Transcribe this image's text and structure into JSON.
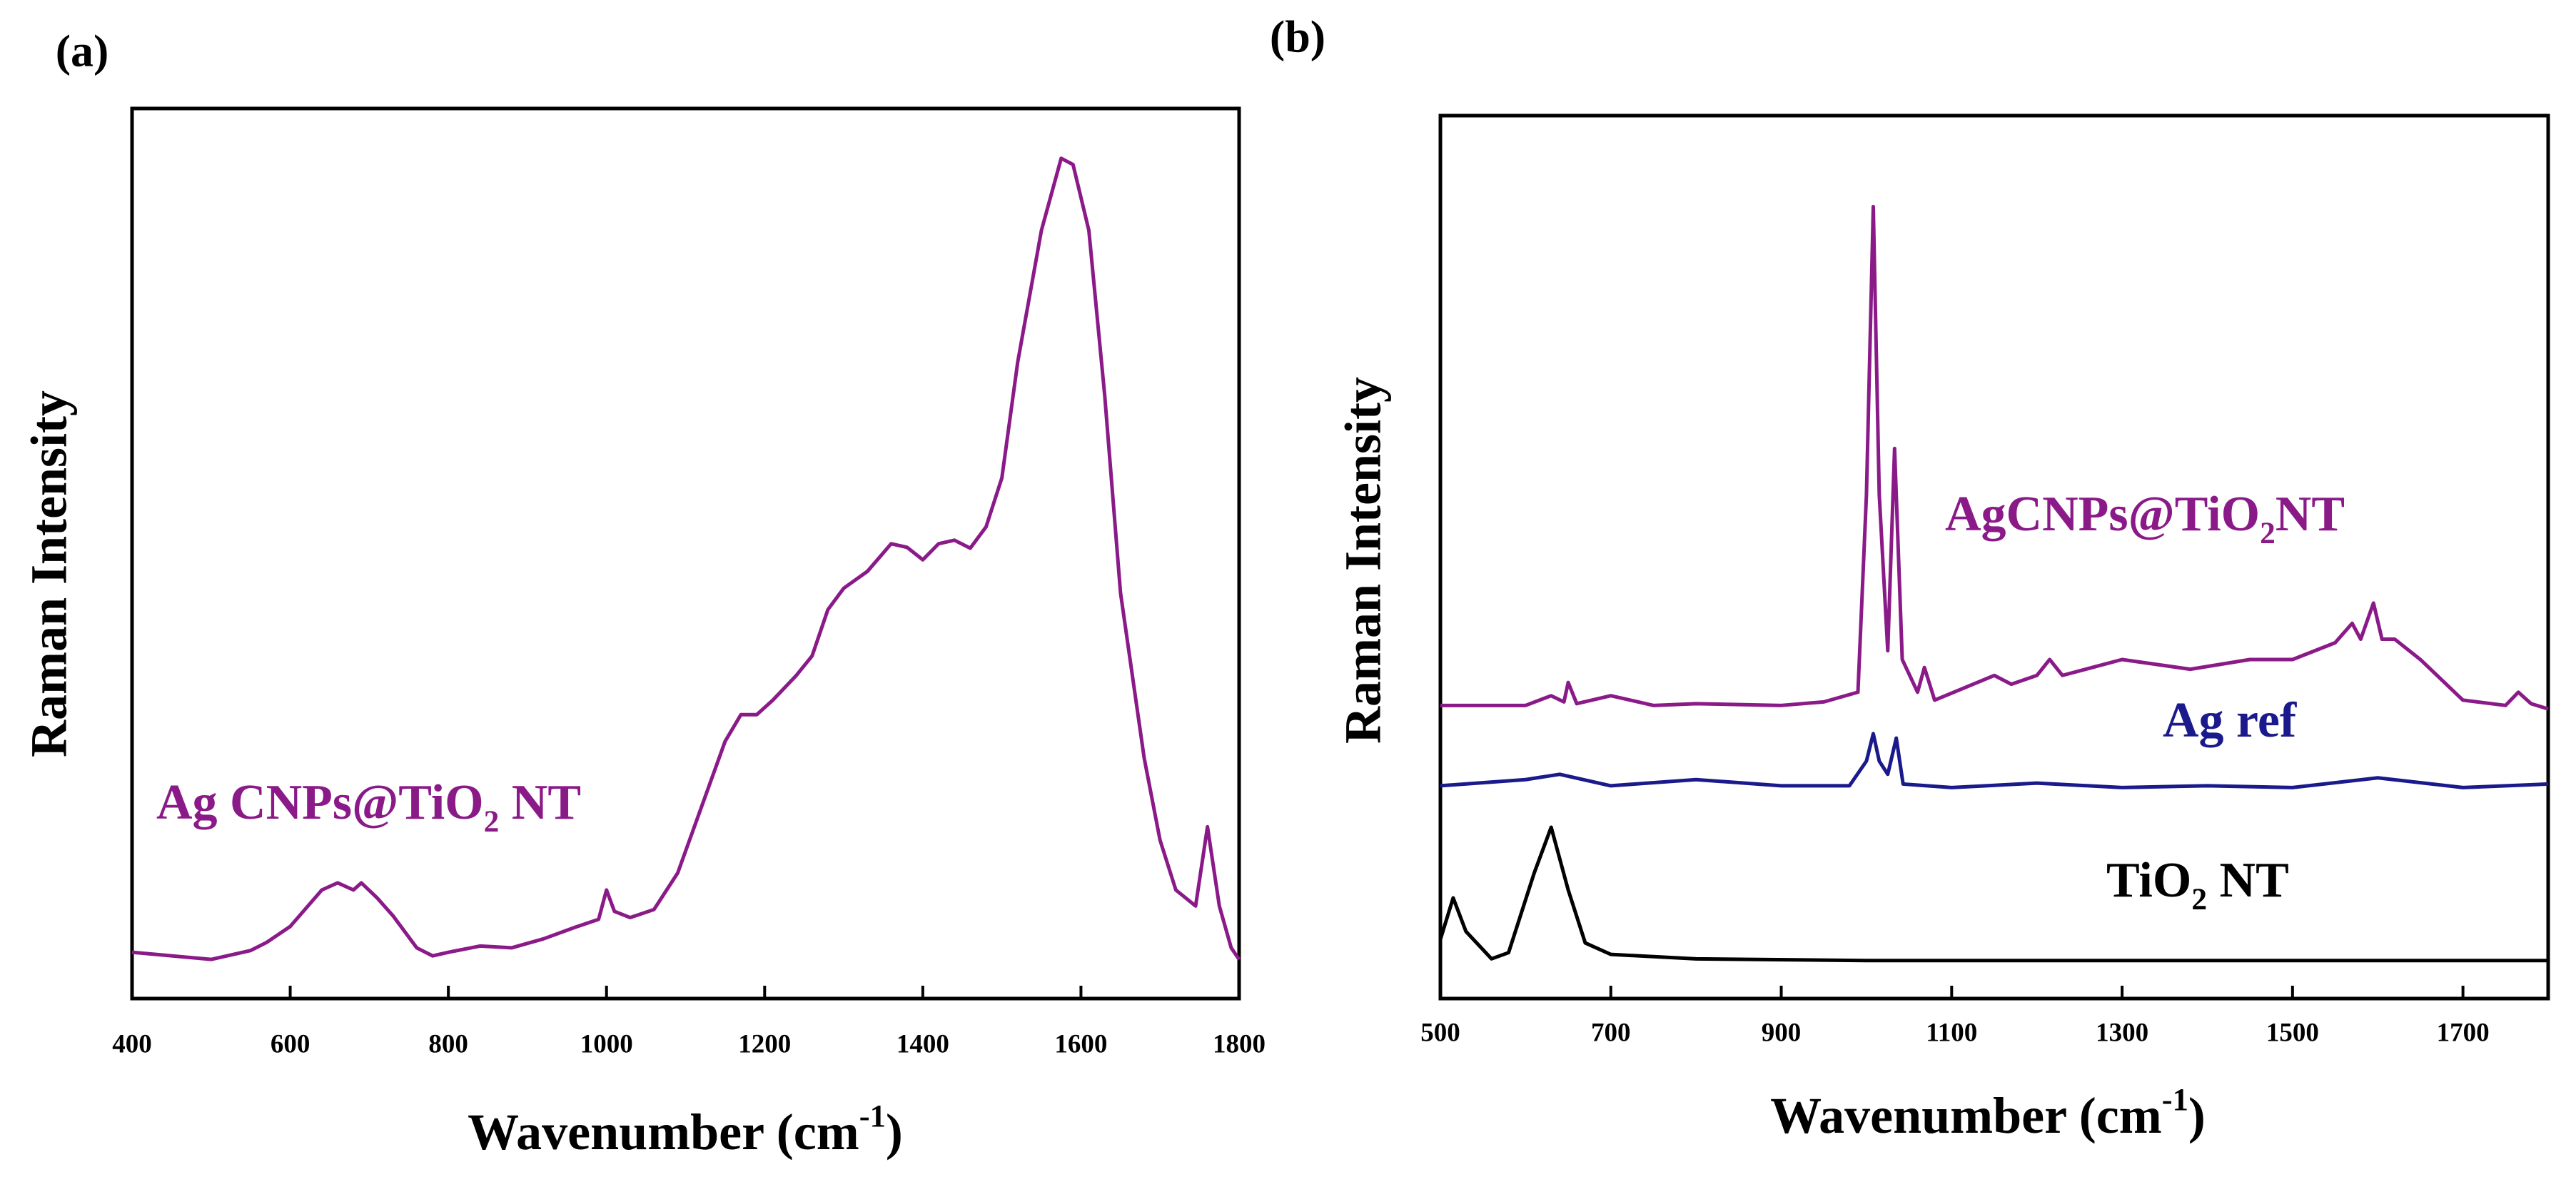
{
  "chart_data": [
    {
      "type": "line",
      "panel": "(a)",
      "y_label": "Raman Intensity",
      "x_label": [
        {
          "t": "Wavenumber (cm"
        },
        {
          "t": "-1",
          "sup": true
        },
        {
          "t": ")"
        }
      ],
      "xlim": [
        400,
        1800
      ],
      "xticks": [
        400,
        600,
        800,
        1000,
        1200,
        1400,
        1600,
        1800
      ],
      "ylim": [
        0,
        100
      ],
      "annotations": [
        {
          "parts": [
            {
              "t": "Ag CNPs@TiO"
            },
            {
              "t": "2",
              "sub": true
            },
            {
              "t": " NT"
            }
          ],
          "color": "#8b1a89"
        }
      ],
      "series": [
        {
          "color": "#8b1a89",
          "x": [
            400,
            450,
            500,
            550,
            570,
            600,
            640,
            660,
            680,
            690,
            710,
            730,
            760,
            780,
            800,
            840,
            880,
            920,
            960,
            990,
            1000,
            1010,
            1030,
            1060,
            1090,
            1120,
            1150,
            1170,
            1190,
            1210,
            1240,
            1260,
            1280,
            1300,
            1330,
            1360,
            1380,
            1400,
            1420,
            1440,
            1460,
            1480,
            1500,
            1520,
            1550,
            1575,
            1590,
            1610,
            1630,
            1650,
            1680,
            1700,
            1720,
            1745,
            1760,
            1775,
            1790,
            1800
          ],
          "values": [
            5.2,
            4.8,
            4.4,
            5.4,
            6.3,
            8.1,
            12.2,
            13,
            12.2,
            13,
            11.3,
            9.3,
            5.7,
            4.8,
            5.2,
            5.9,
            5.7,
            6.7,
            8,
            8.9,
            12.2,
            9.8,
            9.1,
            10,
            14.1,
            21.5,
            28.9,
            31.9,
            31.9,
            33.5,
            36.3,
            38.5,
            43.7,
            46.1,
            48,
            51.1,
            50.7,
            49.3,
            51.1,
            51.5,
            50.6,
            53,
            58.5,
            71.5,
            86.3,
            94.4,
            93.7,
            86.3,
            67.8,
            45.6,
            27,
            17.8,
            12.2,
            10.4,
            19.3,
            10.4,
            5.7,
            4.4
          ]
        }
      ]
    },
    {
      "type": "line",
      "panel": "(b)",
      "y_label": "Raman Intensity",
      "x_label": [
        {
          "t": "Wavenumber (cm"
        },
        {
          "t": "-1",
          "sup": true
        },
        {
          "t": ")"
        }
      ],
      "xlim": [
        500,
        1800
      ],
      "xticks": [
        500,
        700,
        900,
        1100,
        1300,
        1500,
        1700
      ],
      "ylim": [
        0,
        100
      ],
      "annotations": [
        {
          "parts": [
            {
              "t": "AgCNPs@TiO"
            },
            {
              "t": "2",
              "sub": true
            },
            {
              "t": "NT"
            }
          ],
          "color": "#8b1a89"
        },
        {
          "parts": [
            {
              "t": "Ag ref"
            }
          ],
          "color": "#1a1a8c"
        },
        {
          "parts": [
            {
              "t": "TiO"
            },
            {
              "t": "2",
              "sub": true
            },
            {
              "t": " NT"
            }
          ],
          "color": "#000000"
        }
      ],
      "series": [
        {
          "color": "#8b1a89",
          "x": [
            500,
            600,
            630,
            645,
            650,
            660,
            700,
            750,
            800,
            900,
            950,
            990,
            1000,
            1008,
            1015,
            1025,
            1033,
            1042,
            1060,
            1068,
            1080,
            1150,
            1170,
            1200,
            1215,
            1230,
            1300,
            1380,
            1450,
            1500,
            1550,
            1570,
            1580,
            1595,
            1605,
            1620,
            1650,
            1700,
            1750,
            1765,
            1780,
            1800
          ],
          "values": [
            33.2,
            33.2,
            34.3,
            33.6,
            35.8,
            33.4,
            34.3,
            33.2,
            33.4,
            33.2,
            33.6,
            34.7,
            57.1,
            89.7,
            57.1,
            39.4,
            62.3,
            38.4,
            34.7,
            37.5,
            33.8,
            36.6,
            35.6,
            36.6,
            38.4,
            36.6,
            38.4,
            37.3,
            38.4,
            38.4,
            40.3,
            42.5,
            40.7,
            44.8,
            40.7,
            40.7,
            38.4,
            33.8,
            33.2,
            34.7,
            33.4,
            32.8
          ]
        },
        {
          "color": "#1a1a8c",
          "x": [
            500,
            600,
            640,
            700,
            800,
            900,
            980,
            1000,
            1008,
            1015,
            1025,
            1035,
            1043,
            1100,
            1200,
            1300,
            1400,
            1500,
            1600,
            1700,
            1800
          ],
          "values": [
            24.1,
            24.8,
            25.4,
            24.1,
            24.8,
            24.1,
            24.1,
            26.9,
            30,
            26.9,
            25.4,
            29.5,
            24.3,
            23.9,
            24.4,
            23.9,
            24.1,
            23.9,
            25,
            23.9,
            24.3
          ]
        },
        {
          "color": "#000000",
          "x": [
            500,
            515,
            530,
            560,
            580,
            610,
            630,
            650,
            670,
            700,
            800,
            1000,
            1200,
            1400,
            1600,
            1800
          ],
          "values": [
            6.7,
            11.4,
            7.6,
            4.5,
            5.2,
            14.2,
            19.4,
            12.3,
            6.3,
            5,
            4.5,
            4.3,
            4.3,
            4.3,
            4.3,
            4.3
          ]
        }
      ]
    }
  ]
}
